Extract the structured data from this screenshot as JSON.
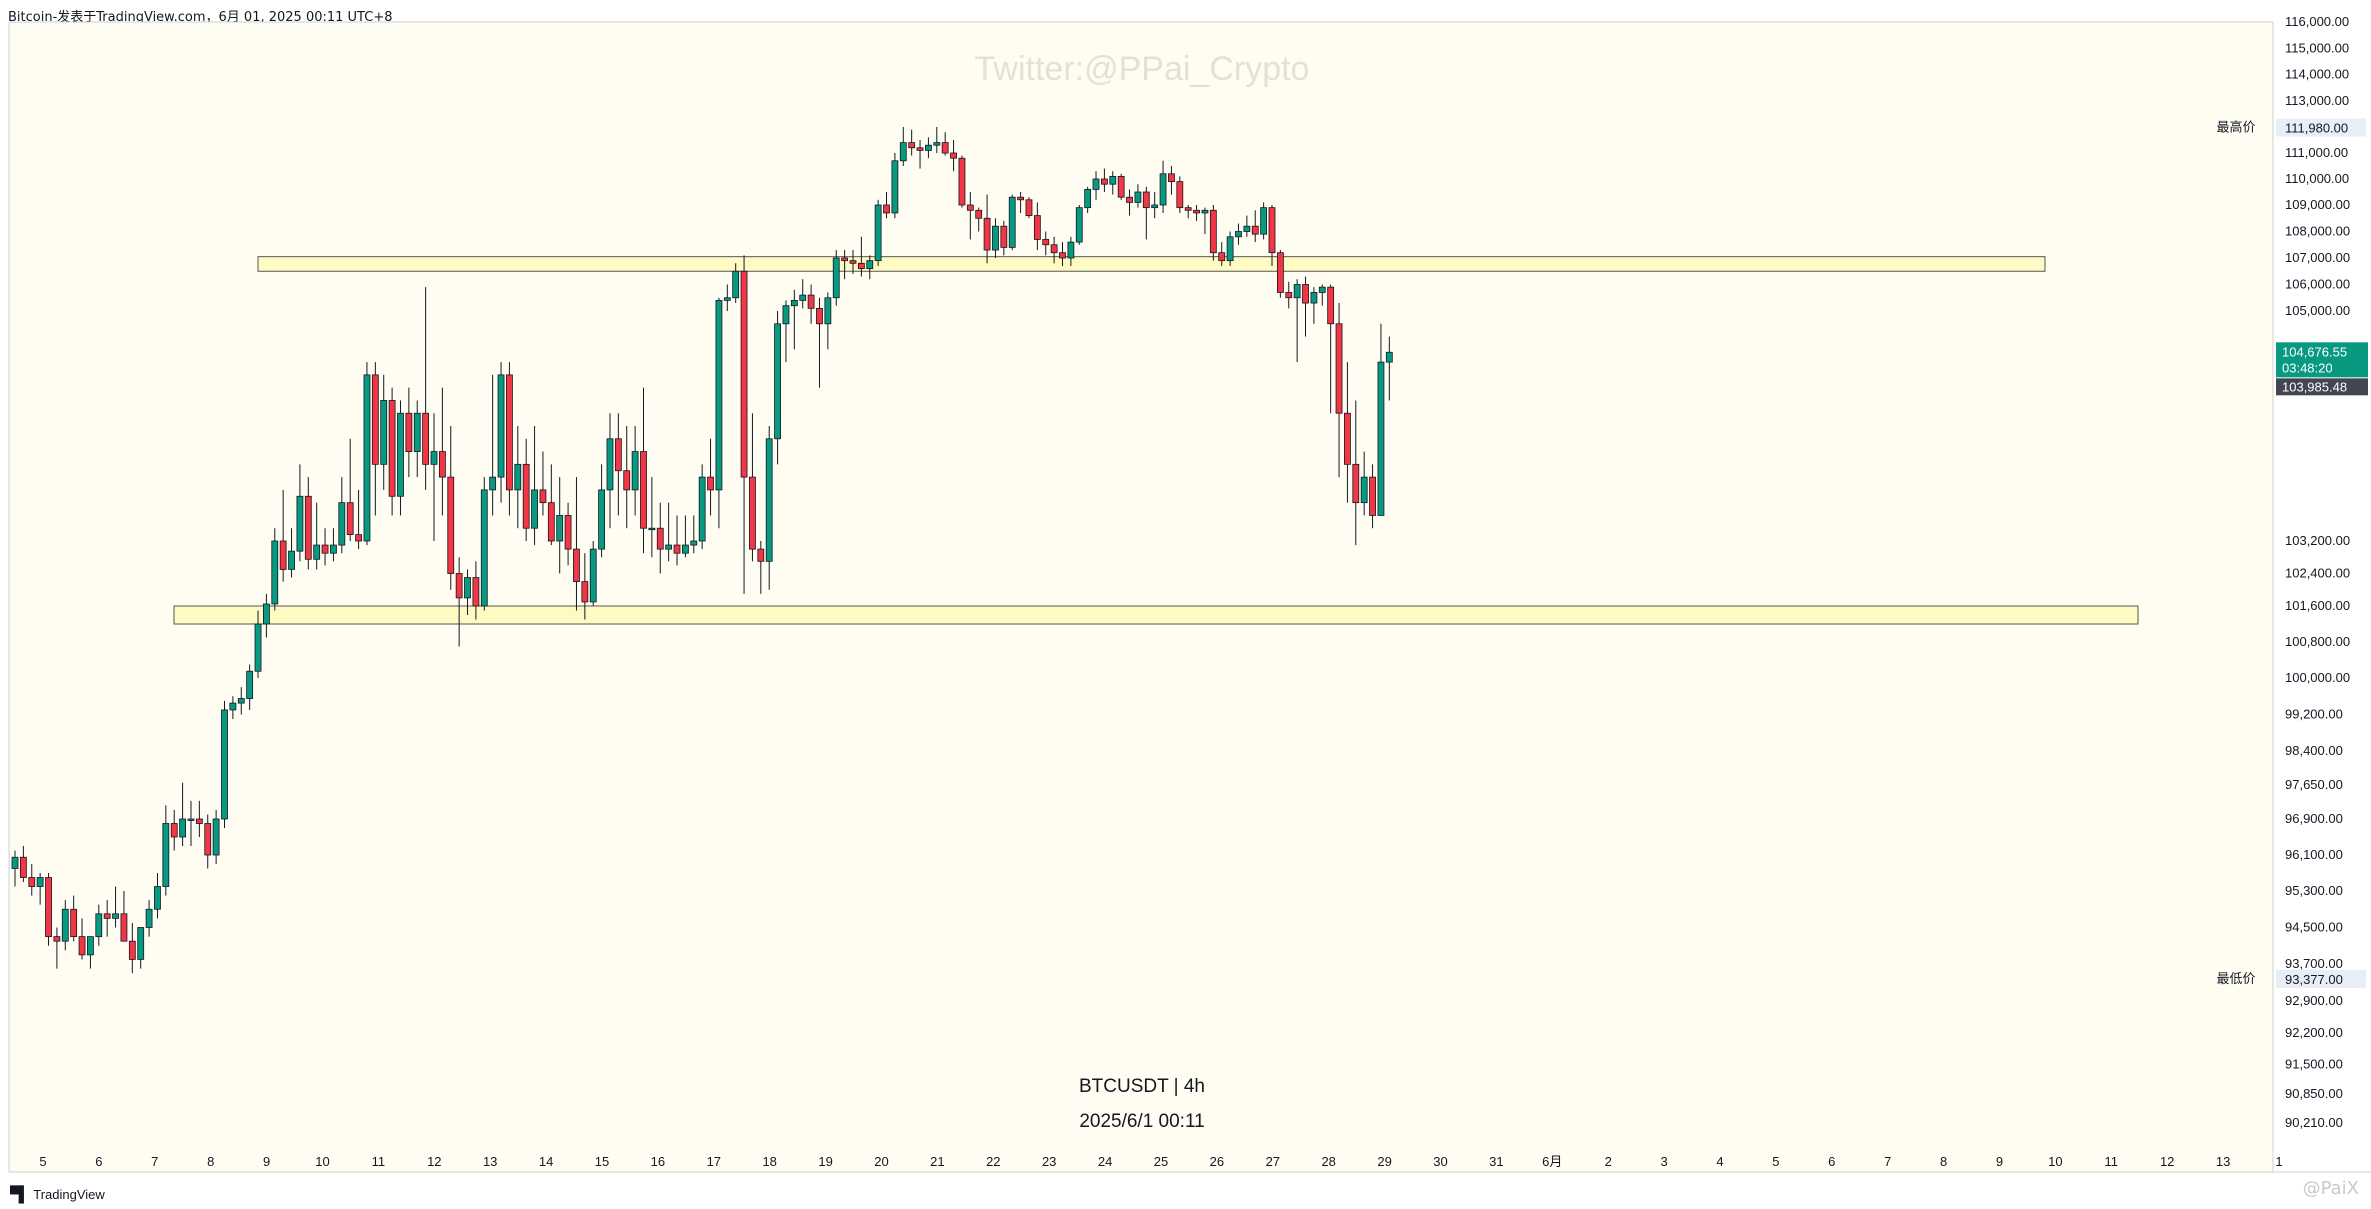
{
  "header": {
    "title": "Bitcoin-发表于TradingView.com，6月 01, 2025 00:11 UTC+8"
  },
  "watermark": {
    "twitter": "Twitter:@PPai_Crypto",
    "corner": "@PaiX"
  },
  "footer": {
    "brand": "TradingView",
    "brand_icon": "tradingview-logo-icon"
  },
  "chart_data": {
    "type": "candlestick",
    "symbol_label": "BTCUSDT | 4h",
    "date_label": "2025/6/1 00:11",
    "price_axis": {
      "ticks": [
        "116,000.00",
        "115,000.00",
        "114,000.00",
        "113,000.00",
        "111,000.00",
        "110,000.00",
        "109,000.00",
        "108,000.00",
        "107,000.00",
        "106,000.00",
        "105,000.00",
        "103,200.00",
        "102,400.00",
        "101,600.00",
        "100,800.00",
        "100,000.00",
        "99,200.00",
        "98,400.00",
        "97,650.00",
        "96,900.00",
        "96,100.00",
        "95,300.00",
        "94,500.00",
        "93,700.00",
        "92,900.00",
        "92,200.00",
        "91,500.00",
        "90,850.00",
        "90,210.00"
      ]
    },
    "time_axis": {
      "labels": [
        "5",
        "6",
        "7",
        "8",
        "9",
        "10",
        "11",
        "12",
        "13",
        "14",
        "15",
        "16",
        "17",
        "18",
        "19",
        "20",
        "21",
        "22",
        "23",
        "24",
        "25",
        "26",
        "27",
        "28",
        "29",
        "30",
        "31",
        "6月",
        "2",
        "3",
        "4",
        "5",
        "6",
        "7",
        "8",
        "9",
        "10",
        "11",
        "12",
        "13",
        "1"
      ]
    },
    "markers": {
      "high_label": "最高价",
      "high_value": "111,980.00",
      "high": 111980,
      "low_label": "最低价",
      "low_value": "93,377.00",
      "low": 93377,
      "last_value": "104,676.55",
      "countdown": "03:48:20",
      "prev_close_value": "103,985.48",
      "last": 104676.55,
      "prev_close": 103985.48
    },
    "zones": [
      {
        "low": 106500,
        "high": 107050,
        "from": "9",
        "to": "10"
      },
      {
        "low": 101200,
        "high": 101600,
        "from": "7",
        "to": "12"
      }
    ],
    "colors": {
      "up": "#089981",
      "down": "#f23645",
      "background": "#fffdf2",
      "zone_fill": "#fff9c4",
      "zone_border": "#555555"
    },
    "candles": [
      [
        95800,
        96200,
        95400,
        96050
      ],
      [
        96050,
        96300,
        95500,
        95600
      ],
      [
        95600,
        95900,
        95200,
        95400
      ],
      [
        95400,
        95700,
        95000,
        95600
      ],
      [
        95600,
        95700,
        94100,
        94300
      ],
      [
        94300,
        94500,
        93600,
        94200
      ],
      [
        94200,
        95100,
        94000,
        94900
      ],
      [
        94900,
        95200,
        94200,
        94300
      ],
      [
        94300,
        94700,
        93800,
        93900
      ],
      [
        93900,
        94300,
        93600,
        94300
      ],
      [
        94300,
        95000,
        94100,
        94800
      ],
      [
        94800,
        95100,
        94300,
        94700
      ],
      [
        94700,
        95400,
        94500,
        94800
      ],
      [
        94800,
        95300,
        94200,
        94200
      ],
      [
        94200,
        94600,
        93500,
        93800
      ],
      [
        93800,
        94500,
        93600,
        94500
      ],
      [
        94500,
        95100,
        94300,
        94900
      ],
      [
        94900,
        95700,
        94700,
        95400
      ],
      [
        95400,
        97200,
        95200,
        96800
      ],
      [
        96800,
        97100,
        96200,
        96500
      ],
      [
        96500,
        97700,
        96300,
        96900
      ],
      [
        96900,
        97300,
        96300,
        96900
      ],
      [
        96900,
        97300,
        96500,
        96800
      ],
      [
        96800,
        97000,
        95800,
        96100
      ],
      [
        96100,
        97100,
        95900,
        96900
      ],
      [
        96900,
        99500,
        96700,
        99300
      ],
      [
        99300,
        99600,
        99100,
        99450
      ],
      [
        99450,
        99800,
        99200,
        99550
      ],
      [
        99550,
        100300,
        99300,
        100150
      ],
      [
        100150,
        101500,
        100000,
        101200
      ],
      [
        101200,
        101900,
        100900,
        101650
      ],
      [
        101650,
        103300,
        101500,
        103200
      ],
      [
        103200,
        103600,
        102200,
        102500
      ],
      [
        102500,
        103300,
        102300,
        102950
      ],
      [
        102950,
        103800,
        102700,
        103550
      ],
      [
        103550,
        103700,
        102500,
        102750
      ],
      [
        102750,
        103500,
        102500,
        103100
      ],
      [
        103100,
        103300,
        102600,
        102900
      ],
      [
        102900,
        103300,
        102700,
        103100
      ],
      [
        103100,
        103700,
        102900,
        103500
      ],
      [
        103500,
        104000,
        103200,
        103250
      ],
      [
        103250,
        103600,
        103000,
        103200
      ],
      [
        103200,
        104600,
        103100,
        104500
      ],
      [
        104500,
        104600,
        103400,
        103800
      ],
      [
        103800,
        104500,
        103600,
        104300
      ],
      [
        104300,
        104400,
        103400,
        103550
      ],
      [
        103550,
        104300,
        103400,
        104200
      ],
      [
        104200,
        104400,
        103700,
        103900
      ],
      [
        103900,
        104300,
        103700,
        104200
      ],
      [
        104200,
        105900,
        103600,
        103800
      ],
      [
        103800,
        104200,
        103200,
        103900
      ],
      [
        103900,
        104400,
        103400,
        103700
      ],
      [
        103700,
        104100,
        102000,
        102400
      ],
      [
        102400,
        102800,
        100700,
        101800
      ],
      [
        101800,
        102500,
        101400,
        102300
      ],
      [
        102300,
        102700,
        101300,
        101600
      ],
      [
        101600,
        103700,
        101500,
        103600
      ],
      [
        103600,
        104500,
        103400,
        103700
      ],
      [
        103700,
        104600,
        103500,
        104500
      ],
      [
        104500,
        104600,
        103400,
        103600
      ],
      [
        103600,
        104100,
        103300,
        103800
      ],
      [
        103800,
        104000,
        103200,
        103300
      ],
      [
        103300,
        104100,
        103100,
        103600
      ],
      [
        103600,
        103900,
        103400,
        103500
      ],
      [
        103500,
        103800,
        103100,
        103200
      ],
      [
        103200,
        103700,
        102400,
        103400
      ],
      [
        103400,
        103500,
        102600,
        103000
      ],
      [
        103000,
        103700,
        101500,
        102200
      ],
      [
        102200,
        102900,
        101300,
        101700
      ],
      [
        101700,
        103200,
        101600,
        103000
      ],
      [
        103000,
        103800,
        102800,
        103600
      ],
      [
        103600,
        104200,
        103300,
        104000
      ],
      [
        104000,
        104200,
        103400,
        103750
      ],
      [
        103750,
        104100,
        103300,
        103600
      ],
      [
        103600,
        104100,
        103400,
        103900
      ],
      [
        103900,
        104400,
        102900,
        103300
      ],
      [
        103300,
        103700,
        102800,
        103300
      ],
      [
        103300,
        103500,
        102400,
        103000
      ],
      [
        103000,
        103500,
        102700,
        103100
      ],
      [
        103100,
        103400,
        102600,
        102900
      ],
      [
        102900,
        103400,
        102800,
        103100
      ],
      [
        103100,
        103400,
        102900,
        103200
      ],
      [
        103200,
        103800,
        103000,
        103700
      ],
      [
        103700,
        104000,
        103400,
        103600
      ],
      [
        103600,
        105500,
        103300,
        105400
      ],
      [
        105400,
        106000,
        105000,
        105500
      ],
      [
        105500,
        106800,
        105300,
        106500
      ],
      [
        106500,
        107100,
        101900,
        103700
      ],
      [
        103700,
        104200,
        102700,
        103000
      ],
      [
        103000,
        103200,
        101900,
        102700
      ],
      [
        102700,
        104100,
        102000,
        104000
      ],
      [
        104000,
        105000,
        103800,
        104900
      ],
      [
        104900,
        105400,
        104600,
        105200
      ],
      [
        105200,
        105800,
        104700,
        105400
      ],
      [
        105400,
        106200,
        105100,
        105600
      ],
      [
        105600,
        106000,
        104900,
        105100
      ],
      [
        105100,
        105500,
        104400,
        104900
      ],
      [
        104900,
        105700,
        104700,
        105500
      ],
      [
        105500,
        107300,
        105200,
        107000
      ],
      [
        107000,
        107300,
        106200,
        106900
      ],
      [
        106900,
        107300,
        106400,
        106800
      ],
      [
        106800,
        107800,
        106300,
        106600
      ],
      [
        106600,
        107100,
        106200,
        106900
      ],
      [
        106900,
        109200,
        106700,
        109000
      ],
      [
        109000,
        109500,
        108500,
        108700
      ],
      [
        108700,
        111000,
        108500,
        110700
      ],
      [
        110700,
        112000,
        110500,
        111400
      ],
      [
        111400,
        111900,
        110900,
        111200
      ],
      [
        111200,
        111500,
        110400,
        111100
      ],
      [
        111100,
        111600,
        110800,
        111300
      ],
      [
        111300,
        112000,
        111000,
        111400
      ],
      [
        111400,
        111800,
        110900,
        111000
      ],
      [
        111000,
        111500,
        110300,
        110800
      ],
      [
        110800,
        110900,
        108900,
        109000
      ],
      [
        109000,
        109500,
        107700,
        108800
      ],
      [
        108800,
        108900,
        108000,
        108500
      ],
      [
        108500,
        109400,
        106800,
        107300
      ],
      [
        107300,
        108500,
        107000,
        108200
      ],
      [
        108200,
        108400,
        107100,
        107400
      ],
      [
        107400,
        109400,
        107300,
        109300
      ],
      [
        109300,
        109500,
        108700,
        109200
      ],
      [
        109200,
        109300,
        108500,
        108600
      ],
      [
        108600,
        109100,
        107300,
        107700
      ],
      [
        107700,
        108000,
        107100,
        107500
      ],
      [
        107500,
        107800,
        106800,
        107200
      ],
      [
        107200,
        107600,
        106700,
        107000
      ],
      [
        107000,
        107800,
        106700,
        107600
      ],
      [
        107600,
        109000,
        107500,
        108900
      ],
      [
        108900,
        109700,
        108700,
        109600
      ],
      [
        109600,
        110300,
        109200,
        110000
      ],
      [
        110000,
        110400,
        109500,
        109800
      ],
      [
        109800,
        110300,
        109400,
        110100
      ],
      [
        110100,
        110200,
        109200,
        109300
      ],
      [
        109300,
        109600,
        108600,
        109100
      ],
      [
        109100,
        109800,
        108900,
        109500
      ],
      [
        109500,
        109700,
        107700,
        108900
      ],
      [
        108900,
        109500,
        108500,
        109000
      ],
      [
        109000,
        110700,
        108700,
        110200
      ],
      [
        110200,
        110500,
        109400,
        109900
      ],
      [
        109900,
        110100,
        108700,
        108900
      ],
      [
        108900,
        109000,
        108500,
        108800
      ],
      [
        108800,
        109000,
        108400,
        108700
      ],
      [
        108700,
        108900,
        107900,
        108800
      ],
      [
        108800,
        109000,
        106900,
        107200
      ],
      [
        107200,
        107600,
        106700,
        106900
      ],
      [
        106900,
        108000,
        106700,
        107800
      ],
      [
        107800,
        108300,
        107500,
        108000
      ],
      [
        108000,
        108600,
        107800,
        108200
      ],
      [
        108200,
        108800,
        107600,
        107900
      ],
      [
        107900,
        109100,
        107700,
        108900
      ],
      [
        108900,
        109000,
        106700,
        107200
      ],
      [
        107200,
        107300,
        105500,
        105700
      ],
      [
        105700,
        106100,
        105100,
        105500
      ],
      [
        105500,
        106200,
        104600,
        106000
      ],
      [
        106000,
        106300,
        104800,
        105300
      ],
      [
        105300,
        105900,
        104900,
        105700
      ],
      [
        105700,
        106000,
        105200,
        105900
      ],
      [
        105900,
        106000,
        104200,
        104900
      ],
      [
        104900,
        105300,
        103700,
        104200
      ],
      [
        104200,
        104600,
        103500,
        103800
      ],
      [
        103800,
        104300,
        103100,
        103500
      ],
      [
        103500,
        103900,
        103400,
        103700
      ],
      [
        103700,
        103800,
        103300,
        103400
      ],
      [
        103400,
        104900,
        103400,
        104600
      ],
      [
        104600,
        104800,
        104300,
        104677
      ]
    ]
  }
}
